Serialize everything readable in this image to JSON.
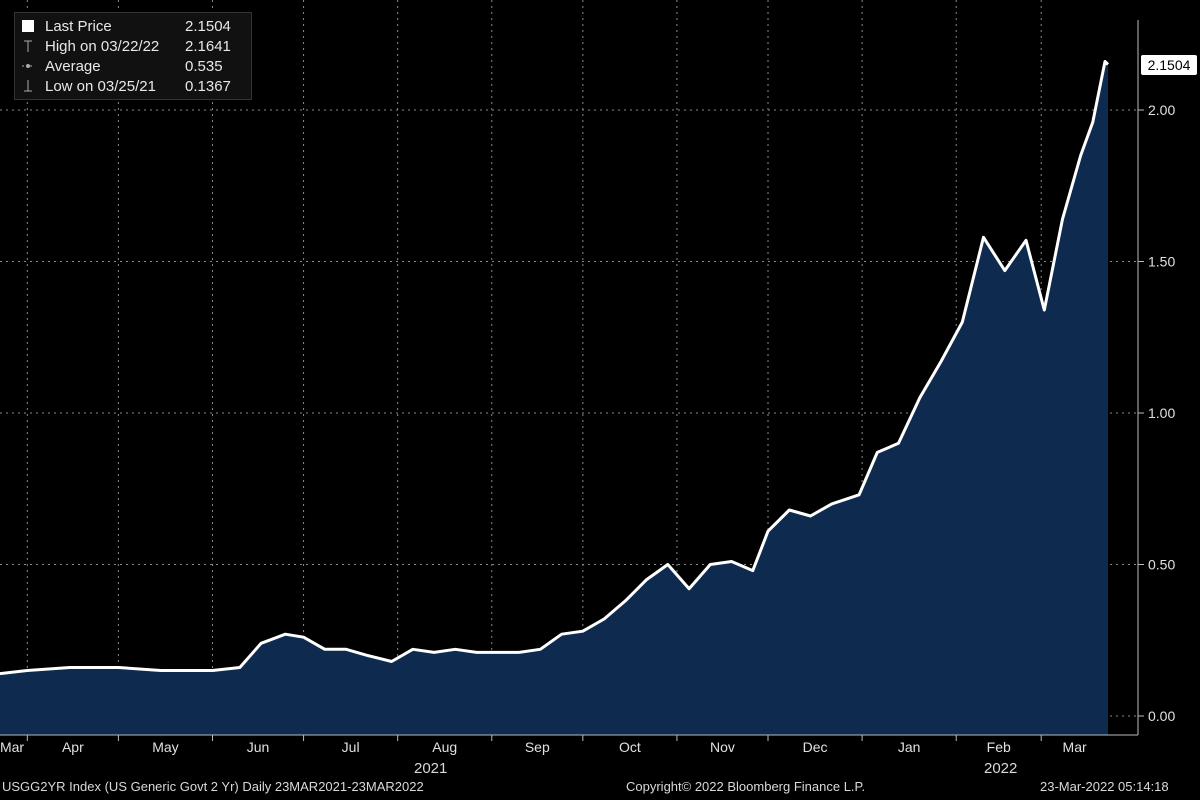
{
  "chart_data": {
    "type": "area",
    "ylim": [
      0.0,
      2.2
    ],
    "y_ticks": [
      "0.00",
      "0.50",
      "1.00",
      "1.50",
      "2.00"
    ],
    "y_tick_values": [
      0.0,
      0.5,
      1.0,
      1.5,
      2.0
    ],
    "x_month_labels": [
      "Mar",
      "Apr",
      "May",
      "Jun",
      "Jul",
      "Aug",
      "Sep",
      "Oct",
      "Nov",
      "Dec",
      "Jan",
      "Feb",
      "Mar"
    ],
    "x_month_dates": [
      "2021-03-23",
      "2021-04-01",
      "2021-05-01",
      "2021-06-01",
      "2021-07-01",
      "2021-08-01",
      "2021-09-01",
      "2021-10-01",
      "2021-11-01",
      "2021-12-01",
      "2022-01-01",
      "2022-02-01",
      "2022-03-01"
    ],
    "x_year_labels": [
      "2021",
      "2022"
    ],
    "x_year_label_dates": [
      "2021-08-01",
      "2022-02-01"
    ],
    "x_range": [
      "2021-03-23",
      "2022-03-23"
    ],
    "grid": true,
    "series": [
      {
        "values": [
          [
            "2021-03-23",
            0.14
          ],
          [
            "2021-04-01",
            0.15
          ],
          [
            "2021-04-15",
            0.16
          ],
          [
            "2021-05-01",
            0.16
          ],
          [
            "2021-05-15",
            0.15
          ],
          [
            "2021-06-01",
            0.15
          ],
          [
            "2021-06-10",
            0.16
          ],
          [
            "2021-06-17",
            0.24
          ],
          [
            "2021-06-25",
            0.27
          ],
          [
            "2021-07-01",
            0.26
          ],
          [
            "2021-07-08",
            0.22
          ],
          [
            "2021-07-15",
            0.22
          ],
          [
            "2021-07-22",
            0.2
          ],
          [
            "2021-07-30",
            0.18
          ],
          [
            "2021-08-06",
            0.22
          ],
          [
            "2021-08-13",
            0.21
          ],
          [
            "2021-08-20",
            0.22
          ],
          [
            "2021-08-27",
            0.21
          ],
          [
            "2021-09-03",
            0.21
          ],
          [
            "2021-09-10",
            0.21
          ],
          [
            "2021-09-17",
            0.22
          ],
          [
            "2021-09-24",
            0.27
          ],
          [
            "2021-10-01",
            0.28
          ],
          [
            "2021-10-08",
            0.32
          ],
          [
            "2021-10-15",
            0.38
          ],
          [
            "2021-10-22",
            0.45
          ],
          [
            "2021-10-29",
            0.5
          ],
          [
            "2021-11-05",
            0.42
          ],
          [
            "2021-11-12",
            0.5
          ],
          [
            "2021-11-19",
            0.51
          ],
          [
            "2021-11-26",
            0.48
          ],
          [
            "2021-12-01",
            0.61
          ],
          [
            "2021-12-08",
            0.68
          ],
          [
            "2021-12-15",
            0.66
          ],
          [
            "2021-12-22",
            0.7
          ],
          [
            "2021-12-31",
            0.73
          ],
          [
            "2022-01-06",
            0.87
          ],
          [
            "2022-01-13",
            0.9
          ],
          [
            "2022-01-20",
            1.05
          ],
          [
            "2022-01-27",
            1.17
          ],
          [
            "2022-02-03",
            1.3
          ],
          [
            "2022-02-10",
            1.58
          ],
          [
            "2022-02-17",
            1.47
          ],
          [
            "2022-02-24",
            1.57
          ],
          [
            "2022-03-02",
            1.34
          ],
          [
            "2022-03-08",
            1.64
          ],
          [
            "2022-03-14",
            1.85
          ],
          [
            "2022-03-18",
            1.96
          ],
          [
            "2022-03-22",
            2.16
          ],
          [
            "2022-03-23",
            2.1504
          ]
        ]
      }
    ],
    "colors": {
      "line": "#ffffff",
      "area": "#0e2a4e",
      "grid": "#8a8a8a",
      "background": "#000000"
    }
  },
  "legend": {
    "rows": [
      {
        "label": "Last Price",
        "value": "2.1504",
        "icon": "square-icon"
      },
      {
        "label": "High on 03/22/22",
        "value": "2.1641",
        "icon": "high-marker-icon"
      },
      {
        "label": "Average",
        "value": "0.535",
        "icon": "average-marker-icon"
      },
      {
        "label": "Low on 03/25/21",
        "value": "0.1367",
        "icon": "low-marker-icon"
      }
    ]
  },
  "last_price_tag": "2.1504",
  "footer": {
    "left": "USGG2YR Index (US Generic Govt 2 Yr)  Daily 23MAR2021-23MAR2022",
    "center": "Copyright© 2022 Bloomberg Finance L.P.",
    "right": "23-Mar-2022 05:14:18"
  }
}
